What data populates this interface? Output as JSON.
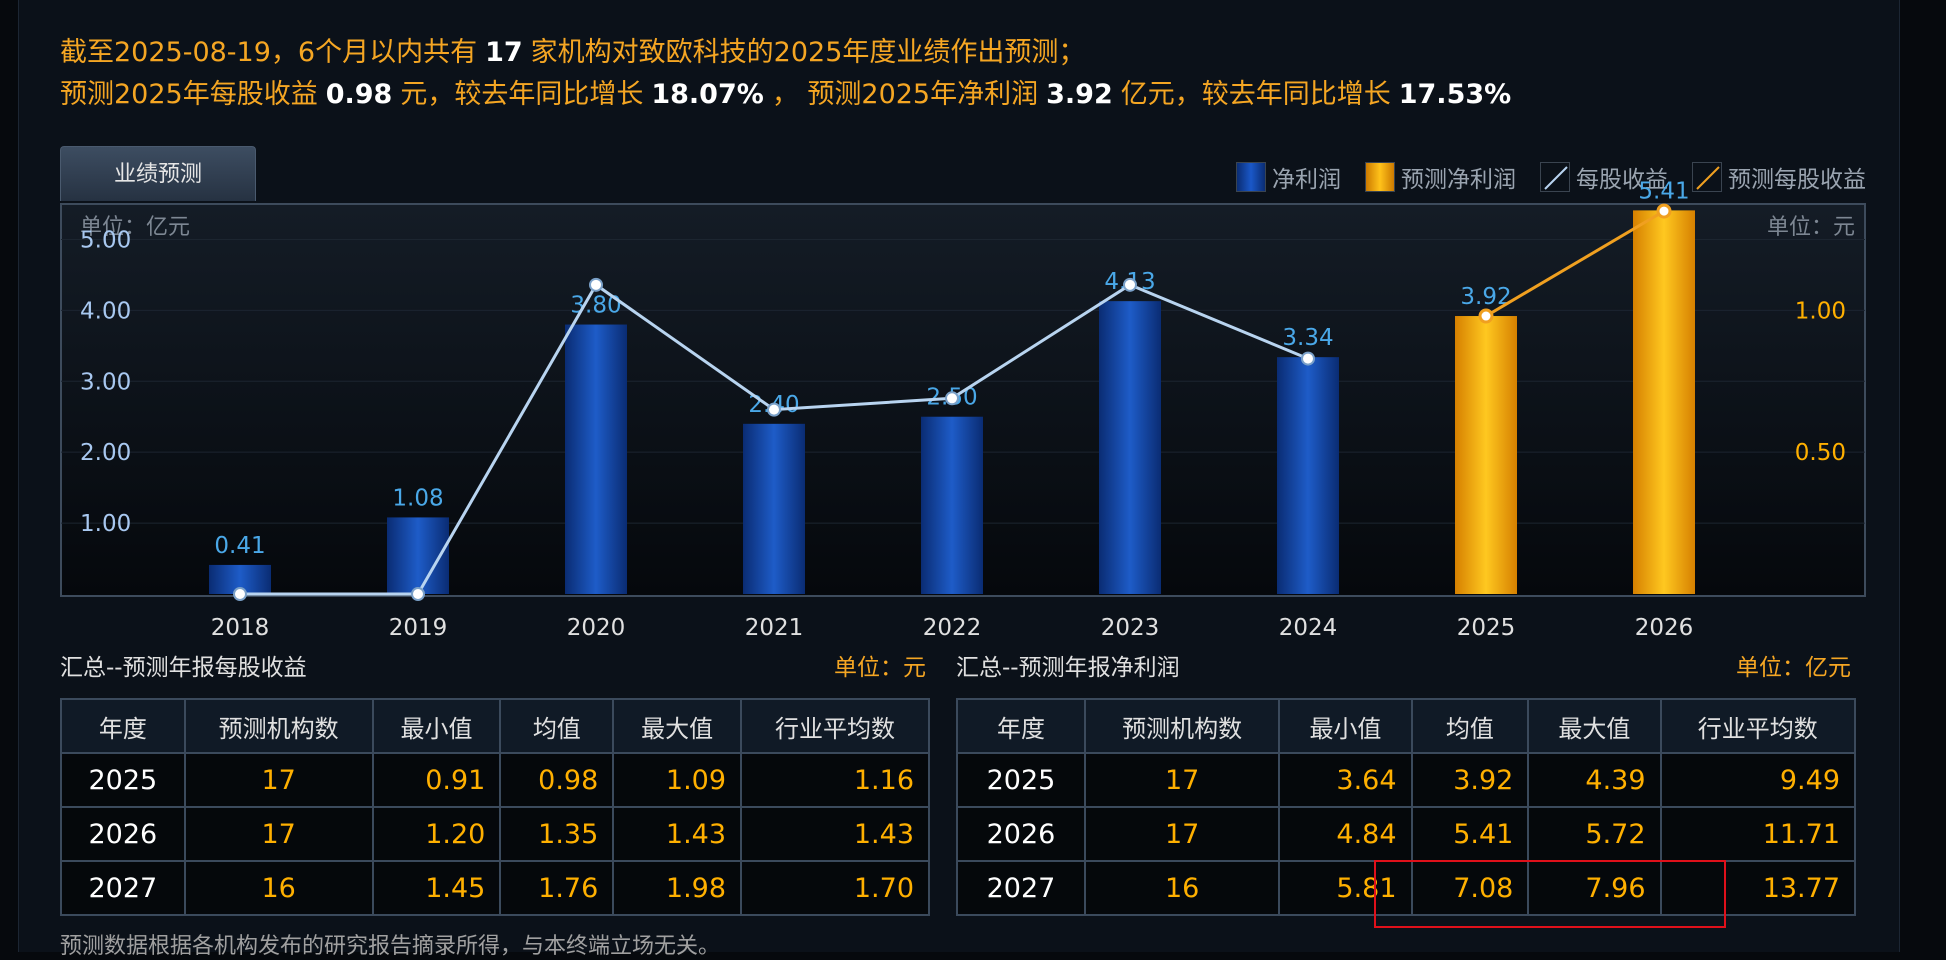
{
  "summary": {
    "line1": {
      "prefix": "截至2025-08-19，6个月以内共有",
      "count": "17",
      "suffix": "家机构对致欧科技的2025年度业绩作出预测；"
    },
    "line2": {
      "p1": "预测2025年每股收益",
      "eps": "0.98",
      "p2": "元，较去年同比增长",
      "eps_growth": "18.07%",
      "p3": "， 预测2025年净利润",
      "np": "3.92",
      "p4": "亿元，较去年同比增长",
      "np_growth": "17.53%"
    }
  },
  "tab_label": "业绩预测",
  "legend": {
    "net_profit": "净利润",
    "forecast_net_profit": "预测净利润",
    "eps": "每股收益",
    "forecast_eps": "预测每股收益"
  },
  "colors": {
    "actual_bar": "#1446a8",
    "forecast_bar": "#f5b000",
    "eps_line": "#b8d4f0",
    "forecast_eps_line": "#f0a020",
    "bar_label": "#4aa8e8",
    "left_axis": "#a8c8f0",
    "right_axis": "#ffb000",
    "highlight": "#e0101a"
  },
  "chart_data": {
    "type": "bar",
    "left_unit": "单位：亿元",
    "right_unit": "单位：元",
    "categories": [
      "2018",
      "2019",
      "2020",
      "2021",
      "2022",
      "2023",
      "2024",
      "2025",
      "2026"
    ],
    "series": [
      {
        "name": "净利润",
        "type": "bar",
        "axis": "left",
        "values": [
          0.41,
          1.08,
          3.8,
          2.4,
          2.5,
          4.13,
          3.34,
          3.92,
          5.41
        ],
        "labels": [
          "0.41",
          "1.08",
          "3.80",
          "2.40",
          "2.50",
          "4.13",
          "3.34",
          "3.92",
          "5.41"
        ],
        "forecast_from": "2025"
      },
      {
        "name": "每股收益",
        "type": "line",
        "axis": "right",
        "values": [
          0.0,
          0.0,
          1.09,
          0.65,
          0.69,
          1.09,
          0.83,
          null,
          null
        ]
      },
      {
        "name": "预测每股收益",
        "type": "line",
        "axis": "right",
        "values": [
          null,
          null,
          null,
          null,
          null,
          null,
          null,
          0.98,
          1.35
        ]
      }
    ],
    "ylim_left": [
      0,
      5.5
    ],
    "yticks_left": [
      "1.00",
      "2.00",
      "3.00",
      "4.00",
      "5.00"
    ],
    "yticks_left_values": [
      1,
      2,
      3,
      4,
      5
    ],
    "ylim_right": [
      0,
      1.375
    ],
    "yticks_right": [
      "0.50",
      "1.00"
    ],
    "yticks_right_values": [
      0.5,
      1.0
    ],
    "grid": true
  },
  "eps_table": {
    "title": "汇总--预测年报每股收益",
    "unit": "单位：元",
    "headers": [
      "年度",
      "预测机构数",
      "最小值",
      "均值",
      "最大值",
      "行业平均数"
    ],
    "rows": [
      [
        "2025",
        "17",
        "0.91",
        "0.98",
        "1.09",
        "1.16"
      ],
      [
        "2026",
        "17",
        "1.20",
        "1.35",
        "1.43",
        "1.43"
      ],
      [
        "2027",
        "16",
        "1.45",
        "1.76",
        "1.98",
        "1.70"
      ]
    ]
  },
  "np_table": {
    "title": "汇总--预测年报净利润",
    "unit": "单位：亿元",
    "headers": [
      "年度",
      "预测机构数",
      "最小值",
      "均值",
      "最大值",
      "行业平均数"
    ],
    "rows": [
      [
        "2025",
        "17",
        "3.64",
        "3.92",
        "4.39",
        "9.49"
      ],
      [
        "2026",
        "17",
        "4.84",
        "5.41",
        "5.72",
        "11.71"
      ],
      [
        "2027",
        "16",
        "5.81",
        "7.08",
        "7.96",
        "13.77"
      ]
    ]
  },
  "disclaimer": "预测数据根据各机构发布的研究报告摘录所得，与本终端立场无关。"
}
